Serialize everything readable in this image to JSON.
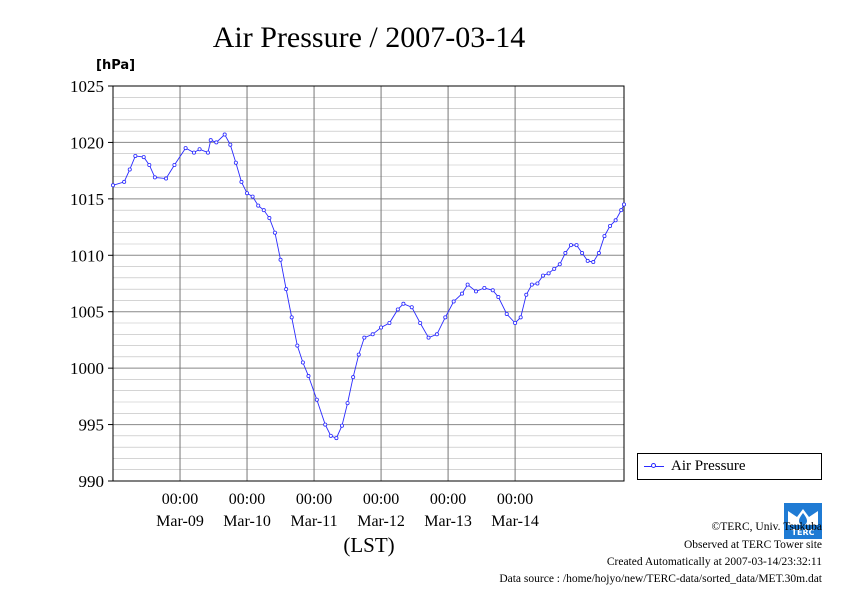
{
  "chart_data": {
    "type": "line",
    "title": "Air Pressure / 2007-03-14",
    "ylabel": "[hPa]",
    "xlabel": "(LST)",
    "ylim": [
      990,
      1025
    ],
    "yticks": [
      "1025",
      "1020",
      "1015",
      "1010",
      "1005",
      "1000",
      "995",
      "990"
    ],
    "grid": true,
    "xticks": [
      {
        "time": "00:00",
        "date": "Mar-09"
      },
      {
        "time": "00:00",
        "date": "Mar-10"
      },
      {
        "time": "00:00",
        "date": "Mar-11"
      },
      {
        "time": "00:00",
        "date": "Mar-12"
      },
      {
        "time": "00:00",
        "date": "Mar-13"
      },
      {
        "time": "00:00",
        "date": "Mar-14"
      }
    ],
    "legend_position": "right",
    "series": [
      {
        "name": "Air Pressure",
        "color": "#2b2bff",
        "points": [
          [
            "2007-03-08 00:00",
            1016.2
          ],
          [
            "2007-03-08 04:00",
            1016.5
          ],
          [
            "2007-03-08 06:00",
            1017.6
          ],
          [
            "2007-03-08 08:00",
            1018.8
          ],
          [
            "2007-03-08 11:00",
            1018.7
          ],
          [
            "2007-03-08 13:00",
            1018.0
          ],
          [
            "2007-03-08 15:00",
            1016.9
          ],
          [
            "2007-03-08 19:00",
            1016.8
          ],
          [
            "2007-03-08 22:00",
            1018.0
          ],
          [
            "2007-03-09 02:00",
            1019.5
          ],
          [
            "2007-03-09 05:00",
            1019.1
          ],
          [
            "2007-03-09 07:00",
            1019.4
          ],
          [
            "2007-03-09 10:00",
            1019.1
          ],
          [
            "2007-03-09 11:00",
            1020.2
          ],
          [
            "2007-03-09 13:00",
            1020.0
          ],
          [
            "2007-03-09 16:00",
            1020.7
          ],
          [
            "2007-03-09 18:00",
            1019.8
          ],
          [
            "2007-03-09 20:00",
            1018.2
          ],
          [
            "2007-03-09 22:00",
            1016.5
          ],
          [
            "2007-03-10 00:00",
            1015.5
          ],
          [
            "2007-03-10 02:00",
            1015.2
          ],
          [
            "2007-03-10 04:00",
            1014.4
          ],
          [
            "2007-03-10 06:00",
            1014.0
          ],
          [
            "2007-03-10 08:00",
            1013.3
          ],
          [
            "2007-03-10 10:00",
            1012.0
          ],
          [
            "2007-03-10 12:00",
            1009.6
          ],
          [
            "2007-03-10 14:00",
            1007.0
          ],
          [
            "2007-03-10 16:00",
            1004.5
          ],
          [
            "2007-03-10 18:00",
            1002.0
          ],
          [
            "2007-03-10 20:00",
            1000.5
          ],
          [
            "2007-03-10 22:00",
            999.3
          ],
          [
            "2007-03-11 01:00",
            997.2
          ],
          [
            "2007-03-11 04:00",
            995.0
          ],
          [
            "2007-03-11 06:00",
            994.0
          ],
          [
            "2007-03-11 08:00",
            993.8
          ],
          [
            "2007-03-11 10:00",
            994.9
          ],
          [
            "2007-03-11 12:00",
            996.9
          ],
          [
            "2007-03-11 14:00",
            999.2
          ],
          [
            "2007-03-11 16:00",
            1001.2
          ],
          [
            "2007-03-11 18:00",
            1002.7
          ],
          [
            "2007-03-11 21:00",
            1003.0
          ],
          [
            "2007-03-12 00:00",
            1003.6
          ],
          [
            "2007-03-12 03:00",
            1004.0
          ],
          [
            "2007-03-12 06:00",
            1005.2
          ],
          [
            "2007-03-12 08:00",
            1005.7
          ],
          [
            "2007-03-12 11:00",
            1005.4
          ],
          [
            "2007-03-12 14:00",
            1004.0
          ],
          [
            "2007-03-12 17:00",
            1002.7
          ],
          [
            "2007-03-12 20:00",
            1003.0
          ],
          [
            "2007-03-12 23:00",
            1004.5
          ],
          [
            "2007-03-13 02:00",
            1005.9
          ],
          [
            "2007-03-13 05:00",
            1006.6
          ],
          [
            "2007-03-13 07:00",
            1007.4
          ],
          [
            "2007-03-13 10:00",
            1006.8
          ],
          [
            "2007-03-13 13:00",
            1007.1
          ],
          [
            "2007-03-13 16:00",
            1006.9
          ],
          [
            "2007-03-13 18:00",
            1006.3
          ],
          [
            "2007-03-13 21:00",
            1004.8
          ],
          [
            "2007-03-14 00:00",
            1004.0
          ],
          [
            "2007-03-14 02:00",
            1004.5
          ],
          [
            "2007-03-14 04:00",
            1006.5
          ],
          [
            "2007-03-14 06:00",
            1007.4
          ],
          [
            "2007-03-14 08:00",
            1007.5
          ],
          [
            "2007-03-14 10:00",
            1008.2
          ],
          [
            "2007-03-14 12:00",
            1008.4
          ],
          [
            "2007-03-14 14:00",
            1008.8
          ],
          [
            "2007-03-14 16:00",
            1009.2
          ],
          [
            "2007-03-14 18:00",
            1010.2
          ],
          [
            "2007-03-14 20:00",
            1010.9
          ],
          [
            "2007-03-14 22:00",
            1010.9
          ],
          [
            "2007-03-15 00:00",
            1010.2
          ],
          [
            "2007-03-15 02:00",
            1009.5
          ],
          [
            "2007-03-15 04:00",
            1009.4
          ],
          [
            "2007-03-15 06:00",
            1010.2
          ],
          [
            "2007-03-15 08:00",
            1011.7
          ],
          [
            "2007-03-15 10:00",
            1012.6
          ],
          [
            "2007-03-15 12:00",
            1013.1
          ],
          [
            "2007-03-15 14:00",
            1014.0
          ],
          [
            "2007-03-15 15:00",
            1014.5
          ]
        ]
      }
    ]
  },
  "legend": {
    "label": "Air Pressure"
  },
  "credits": {
    "copyright": "©TERC, Univ. Tsukuba",
    "site": "Observed at TERC Tower site",
    "created": "Created Automatically at 2007-03-14/23:32:11",
    "source": "Data source : /home/hojyo/new/TERC-data/sorted_data/MET.30m.dat"
  },
  "logo": {
    "text": "TERC"
  }
}
